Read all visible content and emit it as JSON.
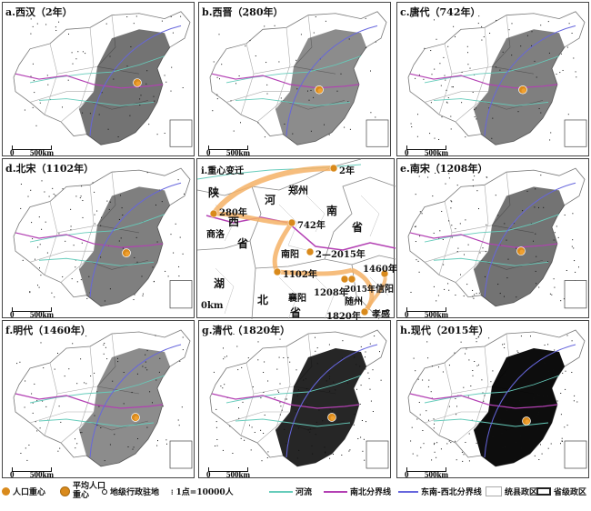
{
  "panels": [
    {
      "id": "a",
      "title": "a.西汉（2年）",
      "density": 0.25,
      "east_fill": 0.55
    },
    {
      "id": "b",
      "title": "b.西晋（280年）",
      "density": 0.22,
      "east_fill": 0.45
    },
    {
      "id": "c",
      "title": "c.唐代（742年）",
      "density": 0.35,
      "east_fill": 0.5
    },
    {
      "id": "d",
      "title": "d.北宋（1102年）",
      "density": 0.4,
      "east_fill": 0.5
    },
    {
      "id": "e",
      "title": "e.南宋（1208年）",
      "density": 0.45,
      "east_fill": 0.55
    },
    {
      "id": "f",
      "title": "f.明代（1460年）",
      "density": 0.35,
      "east_fill": 0.45
    },
    {
      "id": "g",
      "title": "g.清代（1820年）",
      "density": 0.55,
      "east_fill": 0.85
    },
    {
      "id": "h",
      "title": "h.现代（2015年）",
      "density": 0.7,
      "east_fill": 0.95
    }
  ],
  "scale": {
    "zero": "0",
    "unit": "500km"
  },
  "center_panel": {
    "title": "i.重心变迁",
    "regions": [
      "陕",
      "西",
      "河",
      "郑州",
      "南",
      "省",
      "商洛",
      "省",
      "湖",
      "北",
      "省",
      "襄阳",
      "南阳",
      "随州",
      "孝感",
      "信阳"
    ],
    "years": [
      "2年",
      "280年",
      "742年",
      "2—2015年",
      "1102年",
      "1208年",
      "1460年",
      "2015年",
      "1820年"
    ],
    "scale": "0km"
  },
  "legend": {
    "pop_center": "人口重心",
    "per_capita_center": "平均人口重心",
    "admin_seat": "地级行政驻地",
    "dot": "1点=10000人",
    "river": "河流",
    "ns_line": "南北分界线",
    "se_nw_line": "东南-西北分界线",
    "county": "统县政区",
    "province": "省级政区"
  },
  "colors": {
    "river": "#66ccbb",
    "ns_line": "#b340b3",
    "se_nw_line": "#6666dd",
    "track": "#f4b266",
    "center": "#d98a1c"
  }
}
